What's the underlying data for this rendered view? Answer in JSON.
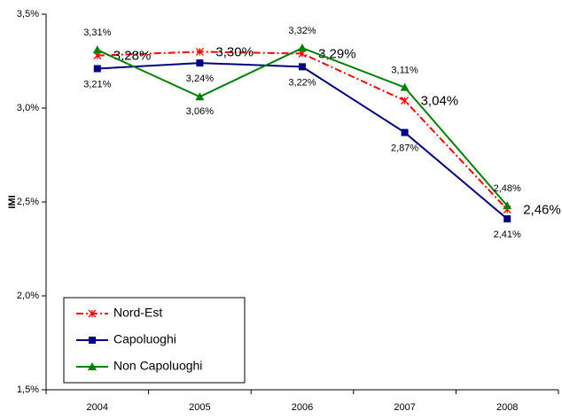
{
  "chart_data": {
    "type": "line",
    "y_label": "IMI",
    "categories": [
      "2004",
      "2005",
      "2006",
      "2007",
      "2008"
    ],
    "series": [
      {
        "name": "Nord-Est",
        "color": "#ff0000",
        "values": [
          3.28,
          3.3,
          3.29,
          3.04,
          2.46
        ],
        "value_labels": [
          "3,28%",
          "3,30%",
          "3,29%",
          "3,04%",
          "2,46%"
        ]
      },
      {
        "name": "Capoluoghi",
        "color": "#000080",
        "values": [
          3.21,
          3.24,
          3.22,
          2.87,
          2.41
        ],
        "value_labels": [
          "3,21%",
          "3,24%",
          "3,22%",
          "2,87%",
          "2,41%"
        ]
      },
      {
        "name": "Non Capoluoghi",
        "color": "#008000",
        "values": [
          3.31,
          3.06,
          3.32,
          3.11,
          2.48
        ],
        "value_labels": [
          "3,31%",
          "3,06%",
          "3,32%",
          "3,11%",
          "2,48%"
        ]
      }
    ],
    "ylim": [
      1.5,
      3.5
    ],
    "yticks": [
      {
        "value": 1.5,
        "label": "1,5%"
      },
      {
        "value": 2.0,
        "label": "2,0%"
      },
      {
        "value": 2.5,
        "label": "2,5%"
      },
      {
        "value": 3.0,
        "label": "3,0%"
      },
      {
        "value": 3.5,
        "label": "3,5%"
      }
    ],
    "grid": false,
    "legend": "lower left"
  }
}
